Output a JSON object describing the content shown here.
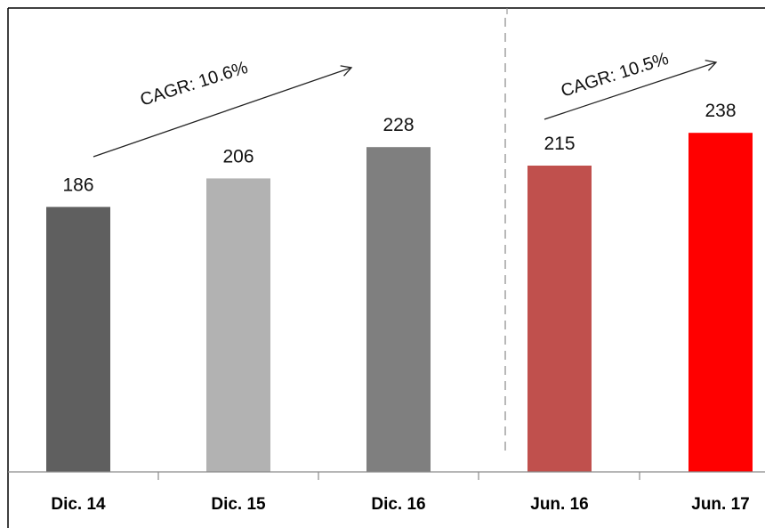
{
  "chart_data": {
    "type": "bar",
    "title": "",
    "xlabel": "",
    "ylabel": "",
    "ylim": [
      0,
      245
    ],
    "grid": false,
    "categories": [
      "Dic. 14",
      "Dic. 15",
      "Dic. 16",
      "Jun. 16",
      "Jun. 17"
    ],
    "values": [
      186,
      206,
      228,
      215,
      238
    ],
    "colors": [
      "#5f5f5f",
      "#b2b2b2",
      "#7f7f7f",
      "#c0504d",
      "#ff0000"
    ],
    "annotations": [
      {
        "text": "CAGR: 10.6%",
        "from": "Dic. 14",
        "to": "Dic. 16"
      },
      {
        "text": "CAGR: 10.5%",
        "from": "Jun. 16",
        "to": "Jun. 17"
      }
    ],
    "separator": {
      "between": [
        "Dic. 16",
        "Jun. 16"
      ],
      "style": "dashed"
    }
  }
}
